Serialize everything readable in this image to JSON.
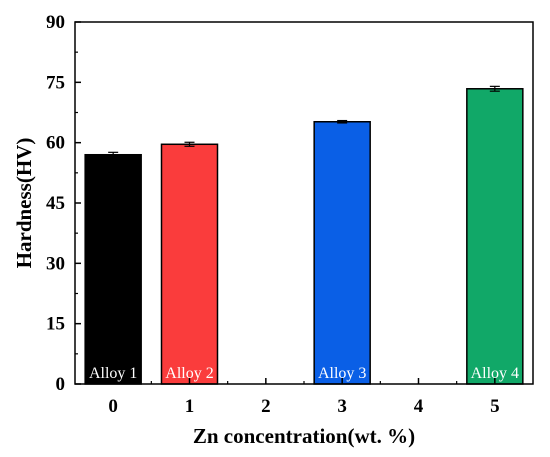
{
  "chart_data": {
    "type": "bar",
    "title": "",
    "xlabel": "Zn concentration(wt. %)",
    "ylabel": "Hardness(HV)",
    "xlim": [
      -0.5,
      5.5
    ],
    "ylim": [
      0,
      90
    ],
    "x_ticks": [
      0,
      1,
      2,
      3,
      4,
      5
    ],
    "y_ticks": [
      0,
      15,
      30,
      45,
      60,
      75,
      90
    ],
    "grid": false,
    "legend": false,
    "bars": [
      {
        "x": 0,
        "value": 57.0,
        "error": 0.6,
        "label": "Alloy 1",
        "color": "#000000"
      },
      {
        "x": 1,
        "value": 59.6,
        "error": 0.5,
        "label": "Alloy 2",
        "color": "#fa3c3c"
      },
      {
        "x": 3,
        "value": 65.2,
        "error": 0.3,
        "label": "Alloy 3",
        "color": "#0a5fe6"
      },
      {
        "x": 5,
        "value": 73.4,
        "error": 0.6,
        "label": "Alloy 4",
        "color": "#11a868"
      }
    ]
  }
}
